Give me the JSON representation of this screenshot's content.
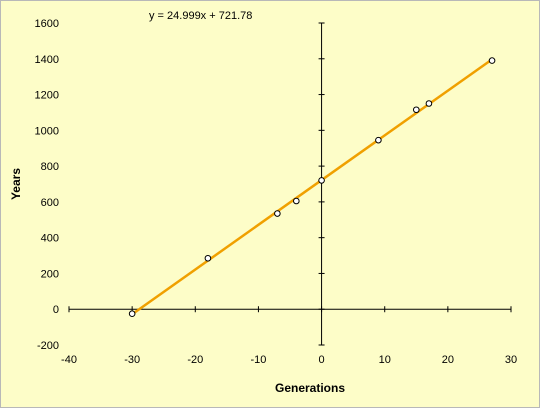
{
  "chart_data": {
    "type": "scatter",
    "title": "",
    "xlabel": "Generations",
    "ylabel": "Years",
    "xlim": [
      -40,
      30
    ],
    "ylim": [
      -200,
      1600
    ],
    "x_ticks": [
      -40,
      -30,
      -20,
      -10,
      0,
      10,
      20,
      30
    ],
    "y_ticks": [
      -200,
      0,
      200,
      400,
      600,
      800,
      1000,
      1200,
      1400,
      1600
    ],
    "grid": false,
    "legend": "none",
    "series": [
      {
        "points": [
          {
            "x": -30,
            "y": -25
          },
          {
            "x": -18,
            "y": 285
          },
          {
            "x": -7,
            "y": 535
          },
          {
            "x": -4,
            "y": 605
          },
          {
            "x": 0,
            "y": 720
          },
          {
            "x": 9,
            "y": 945
          },
          {
            "x": 15,
            "y": 1115
          },
          {
            "x": 17,
            "y": 1150
          },
          {
            "x": 27,
            "y": 1390
          }
        ],
        "marker_color": "#ffffff",
        "marker_edge_color": "#000000"
      }
    ],
    "trendline": {
      "slope": 24.999,
      "intercept": 721.78,
      "x_range": [
        -30,
        27
      ],
      "color": "#f0a000",
      "equation_label": "y = 24.999x + 721.78"
    },
    "colors": {
      "background": "#fdfdc8",
      "axis": "#000000"
    }
  }
}
